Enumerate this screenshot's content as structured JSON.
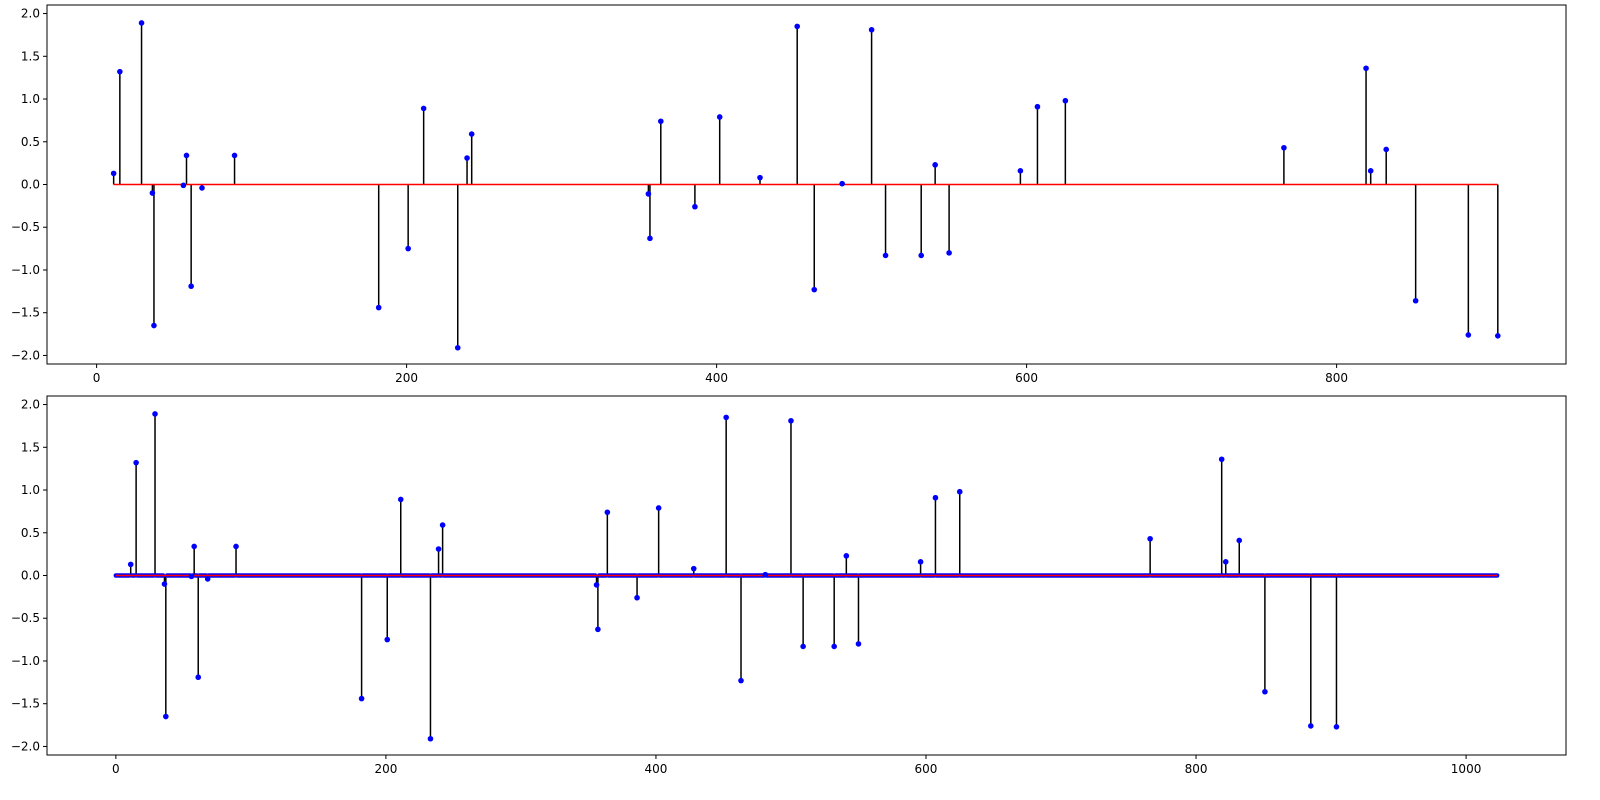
{
  "chart_data": [
    {
      "type": "stem",
      "title": "",
      "xlabel": "",
      "ylabel": "",
      "xlim": [
        -32,
        948
      ],
      "ylim": [
        -2.1,
        2.1
      ],
      "xticks": [
        0,
        200,
        400,
        600,
        800
      ],
      "yticks": [
        -2.0,
        -1.5,
        -1.0,
        -0.5,
        0.0,
        0.5,
        1.0,
        1.5,
        2.0
      ],
      "xtick_labels": [
        "0",
        "200",
        "400",
        "600",
        "800"
      ],
      "ytick_labels": [
        "−2.0",
        "−1.5",
        "−1.0",
        "−0.5",
        "0.0",
        "0.5",
        "1.0",
        "1.5",
        "2.0"
      ],
      "colors": {
        "stem": "#000000",
        "marker": "#0000ff",
        "baseline": "#ff0000"
      },
      "x": [
        11,
        15,
        29,
        36,
        37,
        56,
        58,
        61,
        68,
        89,
        182,
        201,
        211,
        233,
        239,
        242,
        356,
        357,
        364,
        386,
        402,
        428,
        452,
        463,
        481,
        500,
        509,
        532,
        541,
        550,
        596,
        607,
        625,
        766,
        819,
        822,
        832,
        851,
        885,
        904
      ],
      "y": [
        0.13,
        1.32,
        1.89,
        -0.1,
        -1.65,
        -0.01,
        0.34,
        -1.19,
        -0.04,
        0.34,
        -1.44,
        -0.75,
        0.89,
        -1.91,
        0.31,
        0.59,
        -0.11,
        -0.63,
        0.74,
        -0.26,
        0.79,
        0.08,
        1.85,
        -1.23,
        0.01,
        1.81,
        -0.83,
        -0.83,
        0.23,
        -0.8,
        0.16,
        0.91,
        0.98,
        0.43,
        1.36,
        0.16,
        0.41,
        -1.36,
        -1.76,
        -1.77
      ]
    },
    {
      "type": "stem",
      "title": "",
      "xlabel": "",
      "ylabel": "",
      "xlim": [
        -51,
        1074
      ],
      "ylim": [
        -2.1,
        2.1
      ],
      "xticks": [
        0,
        200,
        400,
        600,
        800,
        1000
      ],
      "yticks": [
        -2.0,
        -1.5,
        -1.0,
        -0.5,
        0.0,
        0.5,
        1.0,
        1.5,
        2.0
      ],
      "xtick_labels": [
        "0",
        "200",
        "400",
        "600",
        "800",
        "1000"
      ],
      "ytick_labels": [
        "−2.0",
        "−1.5",
        "−1.0",
        "−0.5",
        "0.0",
        "0.5",
        "1.0",
        "1.5",
        "2.0"
      ],
      "colors": {
        "stem": "#000000",
        "marker": "#0000ff",
        "baseline": "#ff0000"
      },
      "x_range": [
        0,
        1023
      ],
      "x": [
        11,
        15,
        29,
        36,
        37,
        56,
        58,
        61,
        68,
        89,
        182,
        201,
        211,
        233,
        239,
        242,
        356,
        357,
        364,
        386,
        402,
        428,
        452,
        463,
        481,
        500,
        509,
        532,
        541,
        550,
        596,
        607,
        625,
        766,
        819,
        822,
        832,
        851,
        885,
        904
      ],
      "y": [
        0.13,
        1.32,
        1.89,
        -0.1,
        -1.65,
        -0.01,
        0.34,
        -1.19,
        -0.04,
        0.34,
        -1.44,
        -0.75,
        0.89,
        -1.91,
        0.31,
        0.59,
        -0.11,
        -0.63,
        0.74,
        -0.26,
        0.79,
        0.08,
        1.85,
        -1.23,
        0.01,
        1.81,
        -0.83,
        -0.83,
        0.23,
        -0.8,
        0.16,
        0.91,
        0.98,
        0.43,
        1.36,
        0.16,
        0.41,
        -1.36,
        -1.76,
        -1.77
      ]
    }
  ]
}
